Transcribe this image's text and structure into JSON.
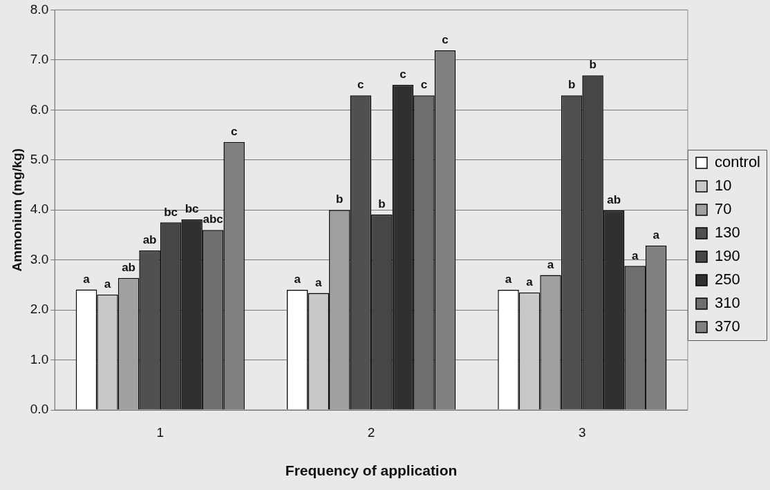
{
  "chart_data": {
    "type": "bar",
    "xlabel": "Frequency of application",
    "ylabel": "Ammonium (mg/kg)",
    "categories": [
      "1",
      "2",
      "3"
    ],
    "series": [
      {
        "name": "control",
        "color": "#ffffff",
        "values": [
          2.41,
          2.4,
          2.4
        ],
        "value_labels": [
          "a",
          "a",
          "a"
        ]
      },
      {
        "name": "10",
        "color": "#c8c8c8",
        "values": [
          2.31,
          2.34,
          2.35
        ],
        "value_labels": [
          "a",
          "a",
          "a"
        ]
      },
      {
        "name": "70",
        "color": "#a0a0a0",
        "values": [
          2.64,
          4.0,
          2.7
        ],
        "value_labels": [
          "ab",
          "b",
          "a"
        ]
      },
      {
        "name": "130",
        "color": "#505050",
        "values": [
          3.19,
          6.29,
          6.29
        ],
        "value_labels": [
          "ab",
          "c",
          "b"
        ]
      },
      {
        "name": "190",
        "color": "#464646",
        "values": [
          3.75,
          3.91,
          6.69
        ],
        "value_labels": [
          "bc",
          "b",
          "b"
        ]
      },
      {
        "name": "250",
        "color": "#303030",
        "values": [
          3.81,
          6.5,
          3.99
        ],
        "value_labels": [
          "bc",
          "c",
          "ab"
        ]
      },
      {
        "name": "310",
        "color": "#6e6e6e",
        "values": [
          3.6,
          6.29,
          2.88
        ],
        "value_labels": [
          "abc",
          "c",
          "a"
        ]
      },
      {
        "name": "370",
        "color": "#808080",
        "values": [
          5.36,
          7.19,
          3.29
        ],
        "value_labels": [
          "c",
          "c",
          "a"
        ]
      }
    ],
    "ylim": [
      0,
      8
    ],
    "yticks": [
      {
        "value": 0,
        "label": "0.0"
      },
      {
        "value": 1,
        "label": "1.0"
      },
      {
        "value": 2,
        "label": "2.0"
      },
      {
        "value": 3,
        "label": "3.0"
      },
      {
        "value": 4,
        "label": "4.0"
      },
      {
        "value": 5,
        "label": "5.0"
      },
      {
        "value": 6,
        "label": "6.0"
      },
      {
        "value": 7,
        "label": "7.0"
      },
      {
        "value": 8,
        "label": "8.0"
      }
    ],
    "grid": "y",
    "legend": "right"
  }
}
